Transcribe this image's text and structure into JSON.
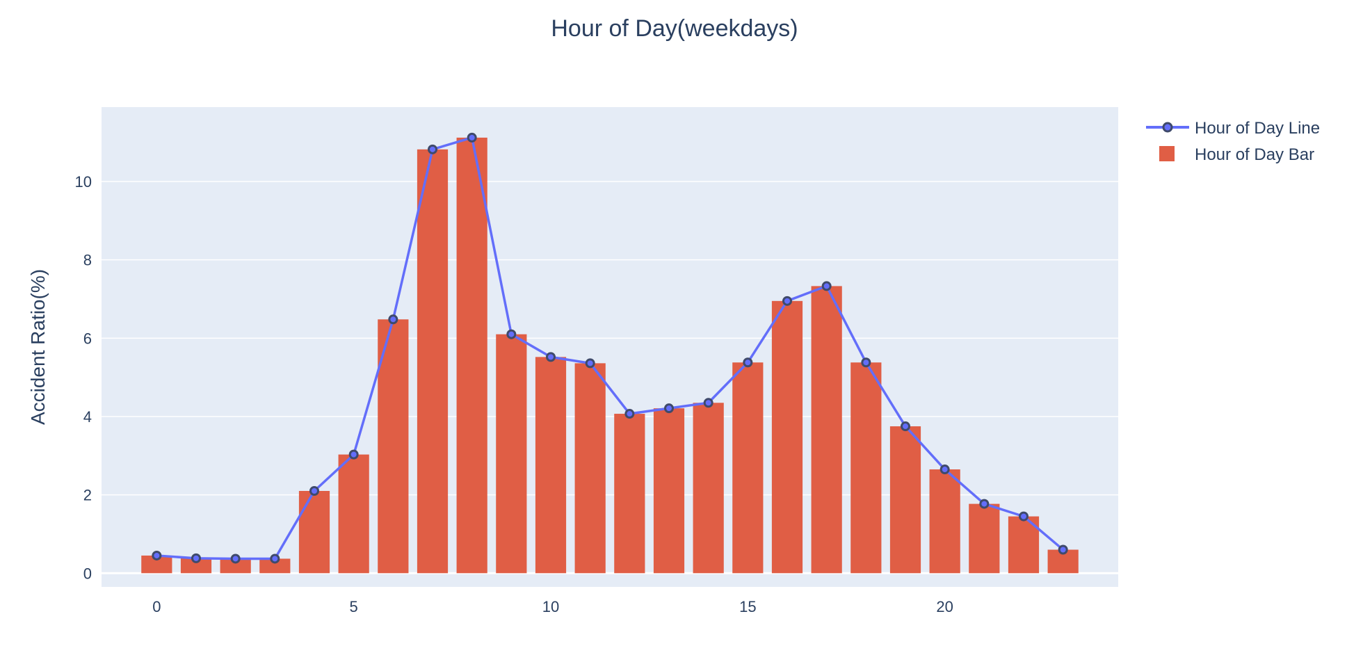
{
  "chart_data": {
    "type": "bar",
    "title": "Hour of Day(weekdays)",
    "xlabel": "",
    "ylabel": "Accident Ratio(%)",
    "x": [
      0,
      1,
      2,
      3,
      4,
      5,
      6,
      7,
      8,
      9,
      10,
      11,
      12,
      13,
      14,
      15,
      16,
      17,
      18,
      19,
      20,
      21,
      22,
      23
    ],
    "x_ticks": [
      0,
      5,
      10,
      15,
      20
    ],
    "y_ticks": [
      0,
      2,
      4,
      6,
      8,
      10
    ],
    "xlim": [
      -1.4,
      24.4
    ],
    "ylim": [
      -0.35,
      11.9
    ],
    "grid": true,
    "legend_position": "top-right",
    "series": [
      {
        "name": "Hour of Day Line",
        "type": "line",
        "color": "#636efa",
        "values": [
          0.45,
          0.38,
          0.37,
          0.37,
          2.1,
          3.03,
          6.48,
          10.82,
          11.12,
          6.1,
          5.52,
          5.36,
          4.07,
          4.21,
          4.35,
          5.38,
          6.95,
          7.33,
          5.38,
          3.75,
          2.65,
          1.77,
          1.45,
          0.6
        ]
      },
      {
        "name": "Hour of Day Bar",
        "type": "bar",
        "color": "#e05e45",
        "values": [
          0.45,
          0.38,
          0.37,
          0.37,
          2.1,
          3.03,
          6.48,
          10.82,
          11.12,
          6.1,
          5.52,
          5.36,
          4.07,
          4.21,
          4.35,
          5.38,
          6.95,
          7.33,
          5.38,
          3.75,
          2.65,
          1.77,
          1.45,
          0.6
        ]
      }
    ],
    "plot_bg_color": "#e5ecf6",
    "marker_color": "#3f4a6b"
  }
}
